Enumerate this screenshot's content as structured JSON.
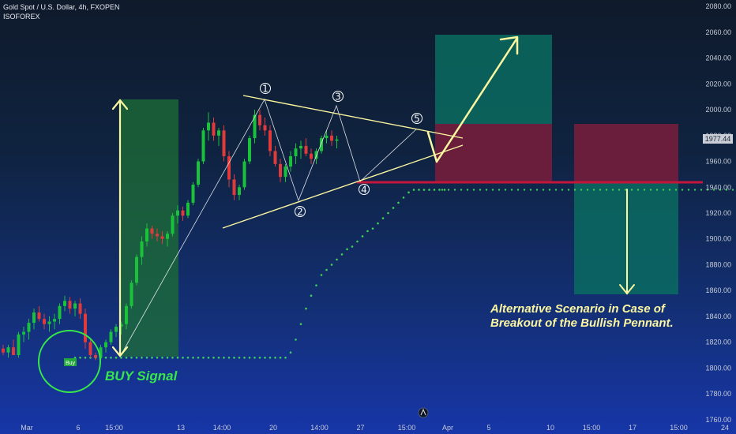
{
  "header": {
    "title": "Gold Spot / U.S. Dollar, 4h, FXOPEN",
    "author": "ISOFOREX"
  },
  "chart_data": {
    "type": "candlestick",
    "symbol": "Gold Spot / U.S. Dollar",
    "timeframe": "4h",
    "exchange": "FXOPEN",
    "ylim": [
      1755,
      2085
    ],
    "y_ticks": [
      1760,
      1780,
      1800,
      1820,
      1840,
      1860,
      1880,
      1900,
      1920,
      1940,
      1960,
      1980,
      2000,
      2020,
      2040,
      2060,
      2080
    ],
    "x_ticks": [
      {
        "label": "Mar",
        "pos": 0
      },
      {
        "label": "6",
        "pos": 10
      },
      {
        "label": "15:00",
        "pos": 17
      },
      {
        "label": "13",
        "pos": 30
      },
      {
        "label": "14:00",
        "pos": 38
      },
      {
        "label": "20",
        "pos": 48
      },
      {
        "label": "14:00",
        "pos": 57
      },
      {
        "label": "27",
        "pos": 65
      },
      {
        "label": "15:00",
        "pos": 74
      },
      {
        "label": "Apr",
        "pos": 82
      },
      {
        "label": "5",
        "pos": 90
      },
      {
        "label": "10",
        "pos": 102
      },
      {
        "label": "15:00",
        "pos": 110
      },
      {
        "label": "17",
        "pos": 118
      },
      {
        "label": "15:00",
        "pos": 127
      },
      {
        "label": "24",
        "pos": 136
      }
    ],
    "last_price": "1977.44",
    "support_level": 1944,
    "candles": [
      [
        1815,
        1818,
        1810,
        1812
      ],
      [
        1812,
        1818,
        1808,
        1816
      ],
      [
        1816,
        1822,
        1812,
        1810
      ],
      [
        1810,
        1828,
        1808,
        1826
      ],
      [
        1826,
        1832,
        1820,
        1828
      ],
      [
        1828,
        1838,
        1822,
        1835
      ],
      [
        1835,
        1846,
        1830,
        1843
      ],
      [
        1843,
        1848,
        1836,
        1838
      ],
      [
        1838,
        1842,
        1830,
        1834
      ],
      [
        1834,
        1840,
        1828,
        1836
      ],
      [
        1836,
        1842,
        1830,
        1838
      ],
      [
        1838,
        1850,
        1834,
        1848
      ],
      [
        1848,
        1856,
        1844,
        1852
      ],
      [
        1852,
        1855,
        1842,
        1846
      ],
      [
        1846,
        1852,
        1840,
        1850
      ],
      [
        1850,
        1854,
        1838,
        1842
      ],
      [
        1842,
        1846,
        1815,
        1820
      ],
      [
        1820,
        1822,
        1808,
        1810
      ],
      [
        1810,
        1812,
        1806,
        1808
      ],
      [
        1808,
        1818,
        1806,
        1816
      ],
      [
        1816,
        1822,
        1812,
        1820
      ],
      [
        1820,
        1830,
        1818,
        1828
      ],
      [
        1828,
        1834,
        1824,
        1832
      ],
      [
        1832,
        1836,
        1826,
        1834
      ],
      [
        1834,
        1850,
        1830,
        1848
      ],
      [
        1848,
        1868,
        1846,
        1866
      ],
      [
        1866,
        1888,
        1864,
        1886
      ],
      [
        1886,
        1902,
        1880,
        1898
      ],
      [
        1898,
        1912,
        1894,
        1908
      ],
      [
        1908,
        1910,
        1900,
        1904
      ],
      [
        1904,
        1908,
        1898,
        1902
      ],
      [
        1902,
        1906,
        1896,
        1900
      ],
      [
        1900,
        1906,
        1894,
        1904
      ],
      [
        1904,
        1920,
        1902,
        1918
      ],
      [
        1918,
        1926,
        1912,
        1922
      ],
      [
        1922,
        1925,
        1914,
        1918
      ],
      [
        1918,
        1930,
        1916,
        1928
      ],
      [
        1928,
        1944,
        1926,
        1942
      ],
      [
        1942,
        1962,
        1940,
        1960
      ],
      [
        1960,
        1986,
        1958,
        1984
      ],
      [
        1984,
        1998,
        1976,
        1990
      ],
      [
        1990,
        1994,
        1976,
        1980
      ],
      [
        1980,
        1986,
        1972,
        1984
      ],
      [
        1984,
        1988,
        1960,
        1964
      ],
      [
        1964,
        1968,
        1940,
        1946
      ],
      [
        1946,
        1950,
        1930,
        1934
      ],
      [
        1934,
        1942,
        1930,
        1940
      ],
      [
        1940,
        1962,
        1938,
        1960
      ],
      [
        1960,
        1980,
        1958,
        1978
      ],
      [
        1978,
        2000,
        1974,
        1996
      ],
      [
        1996,
        2000,
        1984,
        1988
      ],
      [
        1988,
        1994,
        1980,
        1984
      ],
      [
        1984,
        1988,
        1964,
        1968
      ],
      [
        1968,
        1972,
        1956,
        1958
      ],
      [
        1958,
        1962,
        1944,
        1948
      ],
      [
        1948,
        1958,
        1944,
        1956
      ],
      [
        1956,
        1968,
        1952,
        1964
      ],
      [
        1964,
        1974,
        1958,
        1970
      ],
      [
        1970,
        1976,
        1962,
        1972
      ],
      [
        1972,
        1978,
        1964,
        1966
      ],
      [
        1966,
        1970,
        1958,
        1962
      ],
      [
        1962,
        1970,
        1958,
        1968
      ],
      [
        1968,
        1980,
        1966,
        1978
      ],
      [
        1978,
        1984,
        1974,
        1980
      ],
      [
        1980,
        1984,
        1972,
        1976
      ],
      [
        1976,
        1980,
        1970,
        1977
      ]
    ],
    "psar_dots": [
      [
        14,
        1808
      ],
      [
        15,
        1808
      ],
      [
        16,
        1808
      ],
      [
        17,
        1808
      ],
      [
        18,
        1808
      ],
      [
        19,
        1808
      ],
      [
        20,
        1808
      ],
      [
        21,
        1808
      ],
      [
        22,
        1808
      ],
      [
        23,
        1808
      ],
      [
        24,
        1808
      ],
      [
        25,
        1808
      ],
      [
        26,
        1808
      ],
      [
        27,
        1808
      ],
      [
        28,
        1808
      ],
      [
        29,
        1808
      ],
      [
        30,
        1808
      ],
      [
        31,
        1808
      ],
      [
        32,
        1808
      ],
      [
        33,
        1808
      ],
      [
        34,
        1808
      ],
      [
        35,
        1808
      ],
      [
        36,
        1808
      ],
      [
        37,
        1808
      ],
      [
        38,
        1808
      ],
      [
        39,
        1808
      ],
      [
        40,
        1808
      ],
      [
        41,
        1808
      ],
      [
        42,
        1808
      ],
      [
        43,
        1808
      ],
      [
        44,
        1808
      ],
      [
        45,
        1808
      ],
      [
        46,
        1808
      ],
      [
        47,
        1808
      ],
      [
        48,
        1808
      ],
      [
        49,
        1808
      ],
      [
        50,
        1808
      ],
      [
        51,
        1808
      ],
      [
        52,
        1808
      ],
      [
        53,
        1808
      ],
      [
        54,
        1808
      ],
      [
        55,
        1808
      ],
      [
        56,
        1812
      ],
      [
        57,
        1822
      ],
      [
        58,
        1834
      ],
      [
        59,
        1846
      ],
      [
        60,
        1856
      ],
      [
        61,
        1864
      ],
      [
        62,
        1872
      ],
      [
        63,
        1876
      ],
      [
        64,
        1880
      ],
      [
        65,
        1884
      ],
      [
        66,
        1888
      ],
      [
        67,
        1892
      ],
      [
        68,
        1894
      ],
      [
        69,
        1898
      ],
      [
        70,
        1902
      ],
      [
        71,
        1906
      ],
      [
        72,
        1908
      ],
      [
        73,
        1912
      ],
      [
        74,
        1916
      ],
      [
        75,
        1920
      ],
      [
        76,
        1924
      ],
      [
        77,
        1928
      ],
      [
        78,
        1932
      ],
      [
        79,
        1936
      ],
      [
        80,
        1938
      ],
      [
        81,
        1938
      ],
      [
        82,
        1938
      ],
      [
        83,
        1938
      ],
      [
        84,
        1938
      ],
      [
        85,
        1938
      ],
      [
        86,
        1938
      ]
    ]
  },
  "annotations": {
    "buy_tag": "Buy",
    "buy_signal": "BUY Signal",
    "scenario_line1": "Alternative Scenario in Case of",
    "scenario_line2": "Breakout of the Bullish Pennant.",
    "pivot_labels": [
      "1",
      "2",
      "3",
      "4",
      "5"
    ]
  },
  "colors": {
    "bull": "#19c23a",
    "bear": "#e03a3a",
    "accent_yellow": "#fbf6a0",
    "signal_green": "#37e74a",
    "support_line": "#c4153a"
  }
}
